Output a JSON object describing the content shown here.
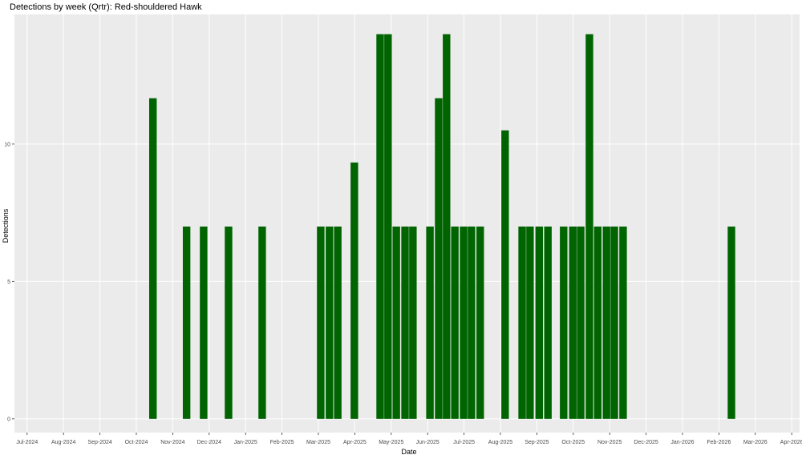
{
  "chart_data": {
    "type": "bar",
    "title": "Detections by week (Qrtr): Red-shouldered Hawk",
    "x_label": "Date",
    "y_label": "Detections",
    "color": "#006400",
    "grid": true,
    "x": [
      2024.788,
      2024.865,
      2024.904,
      2024.961,
      2025.038,
      2025.172,
      2025.192,
      2025.211,
      2025.249,
      2025.308,
      2025.326,
      2025.345,
      2025.365,
      2025.383,
      2025.422,
      2025.442,
      2025.46,
      2025.479,
      2025.499,
      2025.517,
      2025.537,
      2025.594,
      2025.633,
      2025.651,
      2025.672,
      2025.692,
      2025.728,
      2025.749,
      2025.767,
      2025.787,
      2025.806,
      2025.826,
      2025.844,
      2025.864,
      2026.112
    ],
    "values": [
      11.67,
      7,
      7,
      7,
      7,
      7,
      7,
      7,
      9.33,
      14,
      14,
      7,
      7,
      7,
      7,
      11.67,
      14,
      7,
      7,
      7,
      7,
      10.5,
      7,
      7,
      7,
      7,
      7,
      7,
      7,
      14,
      7,
      7,
      7,
      7,
      7
    ],
    "xlim": [
      2024.471,
      2026.268
    ],
    "ylim": [
      -0.5,
      14.72
    ],
    "yticks": [
      0,
      5,
      10
    ],
    "xticks": [
      {
        "value": 2024.5,
        "label": "Jul-2024"
      },
      {
        "value": 2024.5833,
        "label": "Aug-2024"
      },
      {
        "value": 2024.6667,
        "label": "Sep-2024"
      },
      {
        "value": 2024.75,
        "label": "Oct-2024"
      },
      {
        "value": 2024.8333,
        "label": "Nov-2024"
      },
      {
        "value": 2024.9167,
        "label": "Dec-2024"
      },
      {
        "value": 2025.0,
        "label": "Jan-2025"
      },
      {
        "value": 2025.0833,
        "label": "Feb-2025"
      },
      {
        "value": 2025.1667,
        "label": "Mar-2025"
      },
      {
        "value": 2025.25,
        "label": "Apr-2025"
      },
      {
        "value": 2025.3333,
        "label": "May-2025"
      },
      {
        "value": 2025.4167,
        "label": "Jun-2025"
      },
      {
        "value": 2025.5,
        "label": "Jul-2025"
      },
      {
        "value": 2025.5833,
        "label": "Aug-2025"
      },
      {
        "value": 2025.6667,
        "label": "Sep-2025"
      },
      {
        "value": 2025.75,
        "label": "Oct-2025"
      },
      {
        "value": 2025.8333,
        "label": "Nov-2025"
      },
      {
        "value": 2025.9167,
        "label": "Dec-2025"
      },
      {
        "value": 2026.0,
        "label": "Jan-2026"
      },
      {
        "value": 2026.0833,
        "label": "Feb-2026"
      },
      {
        "value": 2026.1667,
        "label": "Mar-2026"
      },
      {
        "value": 2026.25,
        "label": "Apr-2026"
      }
    ]
  }
}
